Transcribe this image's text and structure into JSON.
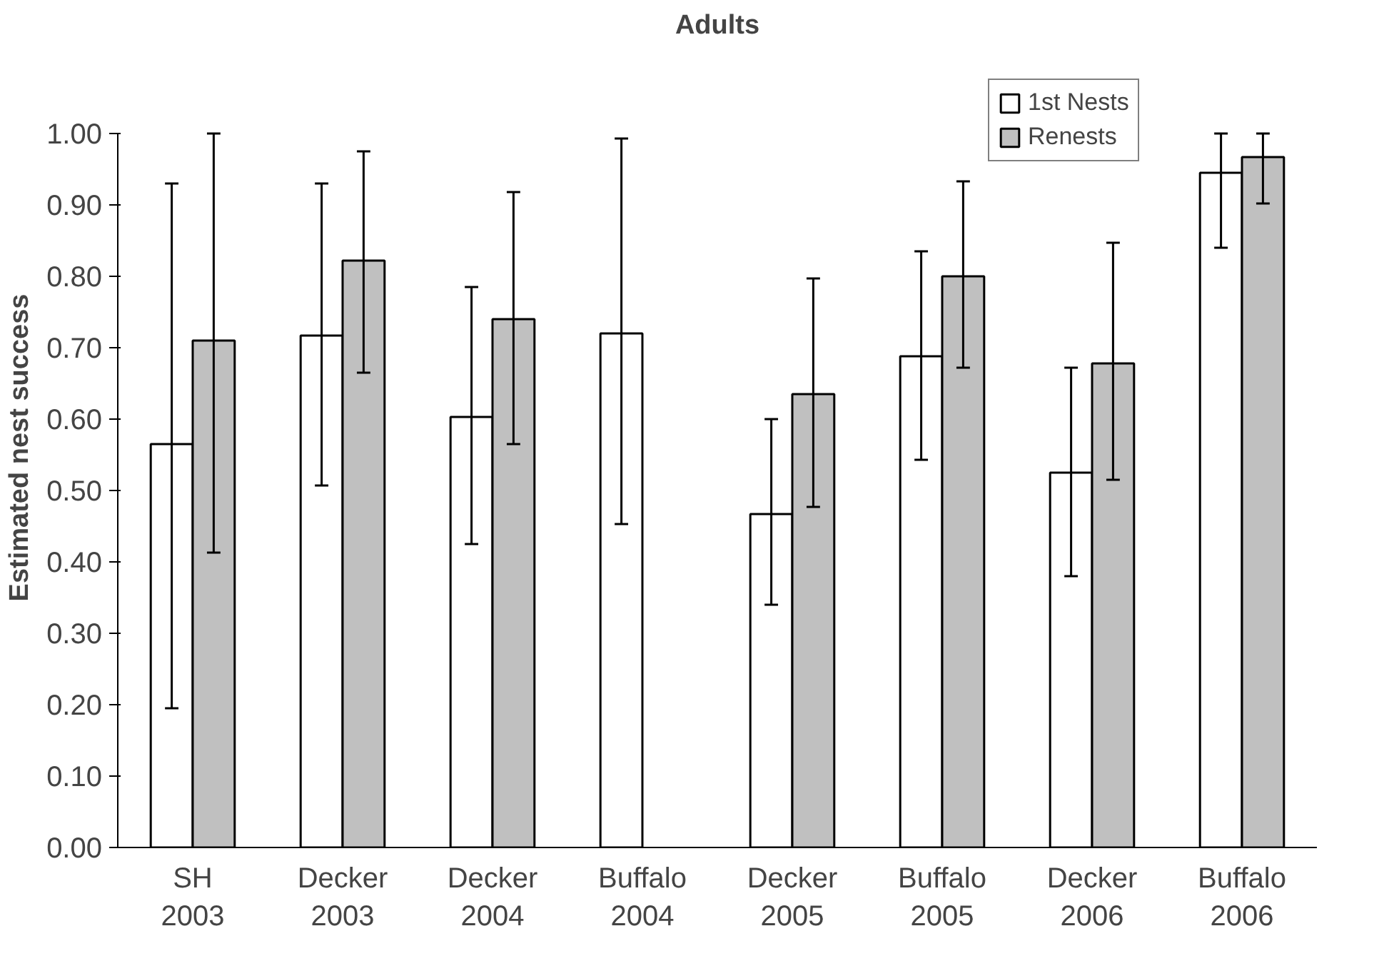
{
  "chart_data": {
    "type": "bar",
    "title": "Adults",
    "ylabel": "Estimated nest success",
    "categories": [
      "SH\n2003",
      "Decker\n2003",
      "Decker\n2004",
      "Buffalo\n2004",
      "Decker\n2005",
      "Buffalo\n2005",
      "Decker\n2006",
      "Buffalo\n2006"
    ],
    "series": [
      {
        "name": "1st Nests",
        "color": "#ffffff",
        "values": [
          0.565,
          0.717,
          0.603,
          0.72,
          0.467,
          0.688,
          0.525,
          0.945
        ],
        "errors": [
          [
            0.195,
            0.93
          ],
          [
            0.507,
            0.93
          ],
          [
            0.425,
            0.785
          ],
          [
            0.453,
            0.993
          ],
          [
            0.34,
            0.6
          ],
          [
            0.543,
            0.835
          ],
          [
            0.38,
            0.672
          ],
          [
            0.84,
            1.0
          ]
        ]
      },
      {
        "name": "Renests",
        "color": "#c0c0c0",
        "values": [
          0.71,
          0.822,
          0.74,
          null,
          0.635,
          0.8,
          0.678,
          0.967
        ],
        "errors": [
          [
            0.413,
            1.0
          ],
          [
            0.665,
            0.975
          ],
          [
            0.565,
            0.918
          ],
          null,
          [
            0.477,
            0.797
          ],
          [
            0.672,
            0.933
          ],
          [
            0.515,
            0.847
          ],
          [
            0.902,
            1.0
          ]
        ]
      }
    ],
    "ylim": [
      0,
      1
    ],
    "yticks": [
      {
        "value": 0,
        "label": "0.00"
      },
      {
        "value": 0.1,
        "label": "0.10"
      },
      {
        "value": 0.2,
        "label": "0.20"
      },
      {
        "value": 0.3,
        "label": "0.30"
      },
      {
        "value": 0.4,
        "label": "0.40"
      },
      {
        "value": 0.5,
        "label": "0.50"
      },
      {
        "value": 0.6,
        "label": "0.60"
      },
      {
        "value": 0.7,
        "label": "0.70"
      },
      {
        "value": 0.8,
        "label": "0.80"
      },
      {
        "value": 0.9,
        "label": "0.90"
      },
      {
        "value": 1,
        "label": "1.00"
      }
    ],
    "grid": false,
    "legend": "top right"
  }
}
